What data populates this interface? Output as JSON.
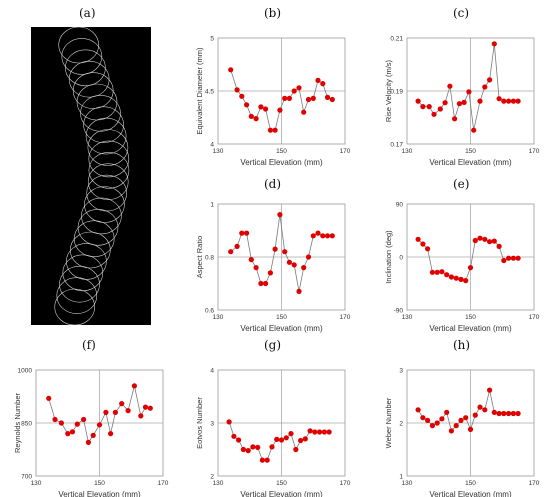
{
  "panel_labels": {
    "a": "(a)",
    "b": "(b)",
    "c": "(c)",
    "d": "(d)",
    "e": "(e)",
    "f": "(f)",
    "g": "(g)",
    "h": "(h)"
  },
  "photo": {
    "background": "#000000",
    "outline_color": "#d0d0d0",
    "bubble_count": 24
  },
  "colors": {
    "marker": "#e00000",
    "line": "#7a7a7a",
    "axes": "#999999",
    "crosshair": "#aaaaaa"
  },
  "chart_data": [
    {
      "id": "b",
      "type": "line",
      "title": "",
      "xlabel": "Vertical Elevation (mm)",
      "ylabel": "Equivalent Diameter (mm)",
      "xlim": [
        130,
        170
      ],
      "ylim": [
        4,
        5
      ],
      "xticks": [
        "130",
        "150",
        "170"
      ],
      "yticks": [
        "4",
        "4.5",
        "5"
      ],
      "x": [
        134,
        136,
        137.5,
        139,
        140.5,
        142,
        143.5,
        145,
        146.5,
        148,
        149.5,
        151,
        152.5,
        154,
        155.5,
        157,
        158.5,
        160,
        161.5,
        163,
        164.5,
        166
      ],
      "y": [
        4.7,
        4.51,
        4.45,
        4.37,
        4.26,
        4.24,
        4.35,
        4.33,
        4.13,
        4.13,
        4.32,
        4.43,
        4.43,
        4.5,
        4.53,
        4.3,
        4.42,
        4.43,
        4.6,
        4.57,
        4.44,
        4.42
      ]
    },
    {
      "id": "c",
      "type": "line",
      "title": "",
      "xlabel": "Vertical Elevation (mm)",
      "ylabel": "Rise Velocity (m/s)",
      "xlim": [
        130,
        170
      ],
      "ylim": [
        0.17,
        0.21
      ],
      "xticks": [
        "130",
        "150",
        "170"
      ],
      "yticks": [
        "0.17",
        "0.19",
        "0.21"
      ],
      "x": [
        133.5,
        135,
        137,
        138.5,
        140.5,
        142,
        143.5,
        145,
        146.5,
        148,
        149.5,
        151,
        153,
        154.5,
        156,
        157.5,
        159,
        160.5,
        162,
        163.5,
        165
      ],
      "y": [
        0.1862,
        0.1841,
        0.1841,
        0.1812,
        0.1832,
        0.1856,
        0.1918,
        0.1795,
        0.1852,
        0.1857,
        0.1897,
        0.1752,
        0.1862,
        0.1915,
        0.1942,
        0.2078,
        0.1871,
        0.1862,
        0.1862,
        0.1862,
        0.1862
      ]
    },
    {
      "id": "d",
      "type": "line",
      "title": "",
      "xlabel": "Vertical Elevation (mm)",
      "ylabel": "Aspect Ratio",
      "xlim": [
        130,
        170
      ],
      "ylim": [
        0.6,
        1
      ],
      "xticks": [
        "130",
        "150",
        "170"
      ],
      "yticks": [
        "0.6",
        "0.8",
        "1"
      ],
      "x": [
        134,
        136,
        137.5,
        139,
        140.5,
        142,
        143.5,
        145,
        146.5,
        148,
        149.5,
        151,
        152.5,
        154,
        155.5,
        157,
        158.5,
        160,
        161.5,
        163,
        164.5,
        166
      ],
      "y": [
        0.82,
        0.84,
        0.89,
        0.89,
        0.79,
        0.76,
        0.7,
        0.7,
        0.74,
        0.83,
        0.96,
        0.82,
        0.78,
        0.77,
        0.67,
        0.76,
        0.8,
        0.88,
        0.89,
        0.88,
        0.88,
        0.88
      ]
    },
    {
      "id": "e",
      "type": "line",
      "title": "",
      "xlabel": "Vertical Elevation (mm)",
      "ylabel": "Inclination (deg)",
      "xlim": [
        130,
        170
      ],
      "ylim": [
        -90,
        90
      ],
      "xticks": [
        "130",
        "150",
        "170"
      ],
      "yticks": [
        "-90",
        "0",
        "90"
      ],
      "x": [
        133.5,
        135,
        136.5,
        138,
        139.5,
        141,
        142.5,
        144,
        145.5,
        147,
        148.5,
        150,
        151.5,
        153,
        154.5,
        156,
        157.5,
        159,
        160.5,
        162,
        163.5,
        165
      ],
      "y": [
        30,
        22,
        14,
        -26,
        -26,
        -25,
        -30,
        -34,
        -36,
        -38,
        -40,
        -18,
        28,
        32,
        30,
        26,
        27,
        18,
        -6,
        -2,
        -2,
        -2
      ]
    },
    {
      "id": "f",
      "type": "line",
      "title": "",
      "xlabel": "Vertical Elevation (mm)",
      "ylabel": "Reynolds Number",
      "xlim": [
        130,
        170
      ],
      "ylim": [
        700,
        1000
      ],
      "xticks": [
        "130",
        "150",
        "170"
      ],
      "yticks": [
        "700",
        "850",
        "1000"
      ],
      "x": [
        134,
        136,
        138,
        140,
        141.5,
        143,
        145,
        146.5,
        148,
        150,
        152,
        153.5,
        155,
        157,
        159,
        161,
        163,
        164.5,
        166
      ],
      "y": [
        920,
        860,
        850,
        820,
        825,
        847,
        860,
        795,
        815,
        845,
        880,
        820,
        880,
        905,
        885,
        955,
        870,
        895,
        892
      ]
    },
    {
      "id": "g",
      "type": "line",
      "title": "",
      "xlabel": "Vertical Elevation (mm)",
      "ylabel": "Eotvos Number",
      "xlim": [
        130,
        170
      ],
      "ylim": [
        2,
        4
      ],
      "xticks": [
        "130",
        "150",
        "170"
      ],
      "yticks": [
        "2",
        "3",
        "4"
      ],
      "x": [
        133.5,
        135,
        136.5,
        138,
        139.5,
        141,
        142.5,
        144,
        145.5,
        147,
        148.5,
        150,
        151.5,
        153,
        154.5,
        156,
        157.5,
        159,
        160.5,
        162,
        163.5,
        165
      ],
      "y": [
        3.02,
        2.75,
        2.68,
        2.5,
        2.48,
        2.55,
        2.54,
        2.3,
        2.3,
        2.55,
        2.69,
        2.68,
        2.72,
        2.8,
        2.5,
        2.67,
        2.7,
        2.85,
        2.83,
        2.83,
        2.83,
        2.83
      ]
    },
    {
      "id": "h",
      "type": "line",
      "title": "",
      "xlabel": "Vertical Elevation (mm)",
      "ylabel": "Weber Number",
      "xlim": [
        130,
        170
      ],
      "ylim": [
        1,
        3
      ],
      "xticks": [
        "130",
        "150",
        "170"
      ],
      "yticks": [
        "1",
        "2",
        "3"
      ],
      "x": [
        133.5,
        135,
        136.5,
        138,
        139.5,
        141,
        142.5,
        144,
        145.5,
        147,
        148.5,
        150,
        151.5,
        153,
        154.5,
        156,
        157.5,
        159,
        160.5,
        162,
        163.5,
        165
      ],
      "y": [
        2.25,
        2.1,
        2.05,
        1.95,
        2.0,
        2.08,
        2.2,
        1.85,
        1.95,
        2.05,
        2.1,
        1.88,
        2.15,
        2.3,
        2.25,
        2.62,
        2.2,
        2.18,
        2.18,
        2.18,
        2.18,
        2.18
      ]
    }
  ]
}
